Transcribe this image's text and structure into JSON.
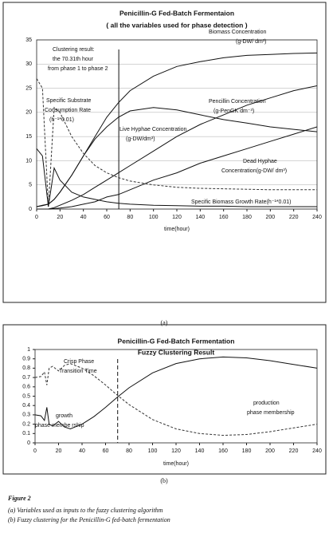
{
  "chart_data": [
    {
      "type": "line",
      "title": "Penicillin-G Fed-Batch Fermentaion",
      "subtitle": "( all the variables used for phase detection )",
      "xlabel": "time(hour)",
      "panel_label": "(a)",
      "xlim": [
        0,
        240
      ],
      "xticks": [
        0,
        20,
        40,
        60,
        80,
        100,
        120,
        140,
        160,
        180,
        200,
        220,
        240
      ],
      "ylim": [
        0,
        35
      ],
      "yticks": [
        0,
        5,
        10,
        15,
        20,
        25,
        30,
        35
      ],
      "grid": true,
      "vline": 70.31,
      "x": [
        0,
        5,
        10,
        15,
        20,
        30,
        40,
        50,
        60,
        70,
        80,
        100,
        120,
        140,
        160,
        180,
        200,
        220,
        240
      ],
      "series": [
        {
          "color": "#111111",
          "values": [
            0.5,
            0.8,
            1,
            2,
            3.5,
            7,
            11,
            15,
            19,
            22,
            24.5,
            27.5,
            29.5,
            30.5,
            31.3,
            31.8,
            32,
            32.2,
            32.3
          ]
        },
        {
          "color": "#111111",
          "values": [
            0,
            0,
            0,
            0.3,
            0.8,
            1.8,
            3,
            4.5,
            6,
            7.5,
            9,
            12,
            15,
            17.5,
            19.5,
            21.5,
            23,
            24.5,
            25.5
          ]
        },
        {
          "color": "#111111",
          "values": [
            0.5,
            0.7,
            1,
            2,
            3.5,
            7,
            11,
            14.5,
            17,
            19,
            20.3,
            21,
            20.5,
            19.5,
            18.5,
            17.8,
            17,
            16.5,
            16
          ]
        },
        {
          "color": "#111111",
          "values": [
            0,
            0,
            0,
            0.1,
            0.2,
            0.5,
            1,
            1.5,
            2.5,
            3,
            4,
            6,
            7.5,
            9.5,
            11,
            12.5,
            14,
            15.5,
            17
          ]
        },
        {
          "color": "#333333",
          "dash": "3,2",
          "values": [
            27,
            25,
            0.5,
            21,
            20,
            15,
            11.5,
            9,
            7.5,
            6.5,
            5.8,
            5,
            4.5,
            4.3,
            4.2,
            4.1,
            4,
            4,
            4
          ]
        },
        {
          "color": "#111111",
          "values": [
            12.5,
            11,
            0.5,
            8.5,
            6,
            3.5,
            2.5,
            2,
            1.5,
            1.2,
            1,
            0.8,
            0.7,
            0.6,
            0.6,
            0.5,
            0.5,
            0.5,
            0.5
          ]
        }
      ],
      "annotations": [
        "Biomass Concentration",
        "(g-DW/ dm³)",
        "Clustering result:",
        "the 70.31th hour",
        "from phase 1 to phase 2",
        "Specific Substrate",
        "Consumption Rate",
        "(h⁻¹*0.01)",
        "Pencillin Concentration",
        "(g-PenGK dm⁻³)",
        "Live Hyphae Concentration",
        "(g-DW/dm³)",
        "Dead Hyphae",
        "Concentration(g-DW/ dm³)",
        "Specific Biomass Growth Rate(h⁻¹*0.01)"
      ]
    },
    {
      "type": "line",
      "title": "Penicillin-G Fed-Batch Fermentation",
      "subtitle": "Fuzzy Clustering Result",
      "xlabel": "time(hour)",
      "panel_label": "(b)",
      "xlim": [
        0,
        240
      ],
      "xticks": [
        0,
        20,
        40,
        60,
        80,
        100,
        120,
        140,
        160,
        180,
        200,
        220,
        240
      ],
      "ylim": [
        0,
        1
      ],
      "yticks": [
        0,
        0.1,
        0.2,
        0.3,
        0.4,
        0.5,
        0.6,
        0.7,
        0.8,
        0.9,
        1
      ],
      "grid": false,
      "vline": 70.31,
      "x": [
        0,
        5,
        8,
        10,
        12,
        15,
        20,
        25,
        30,
        40,
        50,
        60,
        70,
        80,
        100,
        120,
        140,
        160,
        180,
        200,
        220,
        240
      ],
      "series": [
        {
          "color": "#333333",
          "dash": "3,2",
          "values": [
            0.7,
            0.71,
            0.76,
            0.62,
            0.8,
            0.82,
            0.77,
            0.83,
            0.85,
            0.8,
            0.72,
            0.62,
            0.51,
            0.41,
            0.25,
            0.15,
            0.1,
            0.08,
            0.09,
            0.12,
            0.16,
            0.2
          ]
        },
        {
          "color": "#111111",
          "values": [
            0.3,
            0.29,
            0.24,
            0.38,
            0.2,
            0.18,
            0.23,
            0.17,
            0.15,
            0.2,
            0.28,
            0.38,
            0.49,
            0.59,
            0.75,
            0.85,
            0.9,
            0.92,
            0.91,
            0.88,
            0.84,
            0.8
          ]
        }
      ],
      "annotations": [
        "Crisp Phase",
        "Transition Time",
        "growth",
        "phase membe rship",
        "production",
        "phase membership"
      ]
    }
  ],
  "caption": {
    "label": "Figure 2",
    "lines": [
      "(a) Variables used as inputs to the fuzzy clustering algorithm",
      "(b) Fuzzy clustering for the Penicillin-G fed-batch fermentation"
    ]
  }
}
